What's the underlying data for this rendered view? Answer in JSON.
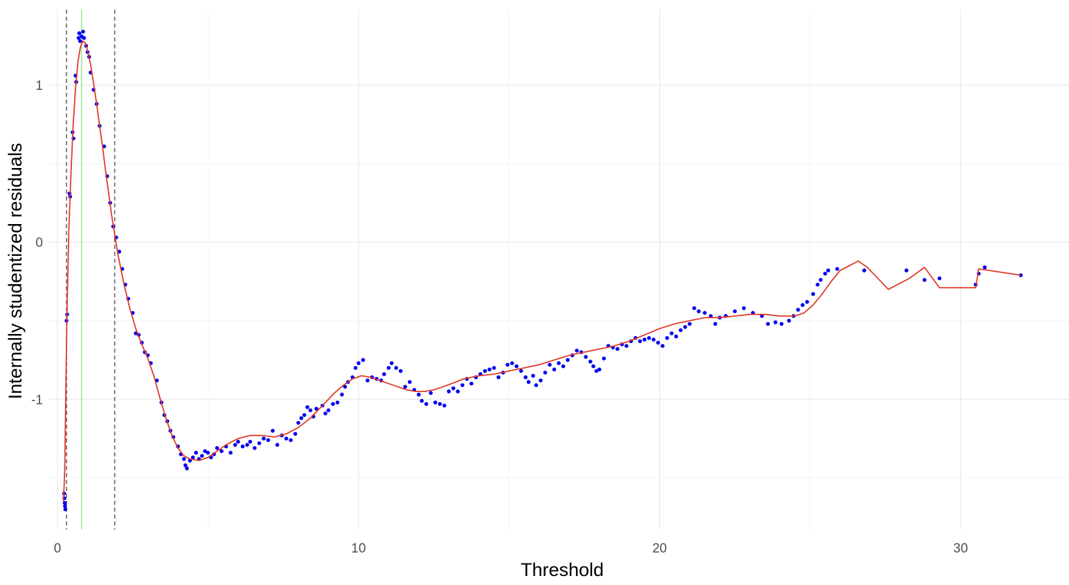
{
  "chart_data": {
    "type": "scatter",
    "title": "",
    "xlabel": "Threshold",
    "ylabel": "Internally studentized residuals",
    "xlim": [
      -0.3,
      33.6
    ],
    "ylim": [
      -1.83,
      1.48
    ],
    "xticks": [
      0,
      10,
      20,
      30
    ],
    "xtick_labels": [
      "0",
      "10",
      "20",
      "30"
    ],
    "yticks": [
      -1,
      0,
      1
    ],
    "ytick_labels": [
      "-1",
      "0",
      "1"
    ],
    "grid": true,
    "vlines": [
      {
        "x": 0.3,
        "style": "dashed",
        "color": "#666666"
      },
      {
        "x": 1.9,
        "style": "dashed",
        "color": "#666666"
      },
      {
        "x": 0.8,
        "style": "solid",
        "color": "#90ee90"
      }
    ],
    "series": [
      {
        "kind": "points",
        "color": "#0000ee",
        "points": [
          [
            0.22,
            -1.6
          ],
          [
            0.23,
            -1.63
          ],
          [
            0.24,
            -1.66
          ],
          [
            0.25,
            -1.68
          ],
          [
            0.26,
            -1.7
          ],
          [
            0.3,
            -0.5
          ],
          [
            0.32,
            -0.46
          ],
          [
            0.4,
            0.31
          ],
          [
            0.42,
            0.29
          ],
          [
            0.5,
            0.7
          ],
          [
            0.53,
            0.66
          ],
          [
            0.6,
            1.06
          ],
          [
            0.62,
            1.02
          ],
          [
            0.7,
            1.3
          ],
          [
            0.72,
            1.33
          ],
          [
            0.75,
            1.28
          ],
          [
            0.8,
            1.31
          ],
          [
            0.85,
            1.34
          ],
          [
            0.88,
            1.3
          ],
          [
            0.95,
            1.25
          ],
          [
            1.0,
            1.21
          ],
          [
            1.05,
            1.18
          ],
          [
            1.1,
            1.08
          ],
          [
            1.2,
            0.97
          ],
          [
            1.3,
            0.88
          ],
          [
            1.4,
            0.74
          ],
          [
            1.55,
            0.61
          ],
          [
            1.65,
            0.42
          ],
          [
            1.75,
            0.25
          ],
          [
            1.85,
            0.1
          ],
          [
            1.95,
            0.03
          ],
          [
            2.05,
            -0.06
          ],
          [
            2.15,
            -0.17
          ],
          [
            2.25,
            -0.27
          ],
          [
            2.35,
            -0.36
          ],
          [
            2.5,
            -0.45
          ],
          [
            2.6,
            -0.58
          ],
          [
            2.7,
            -0.59
          ],
          [
            2.8,
            -0.64
          ],
          [
            2.9,
            -0.7
          ],
          [
            3.0,
            -0.72
          ],
          [
            3.1,
            -0.77
          ],
          [
            3.3,
            -0.88
          ],
          [
            3.45,
            -1.02
          ],
          [
            3.55,
            -1.1
          ],
          [
            3.65,
            -1.14
          ],
          [
            3.75,
            -1.2
          ],
          [
            3.85,
            -1.24
          ],
          [
            4.0,
            -1.3
          ],
          [
            4.1,
            -1.35
          ],
          [
            4.2,
            -1.38
          ],
          [
            4.25,
            -1.42
          ],
          [
            4.3,
            -1.44
          ],
          [
            4.4,
            -1.39
          ],
          [
            4.5,
            -1.37
          ],
          [
            4.6,
            -1.34
          ],
          [
            4.7,
            -1.38
          ],
          [
            4.8,
            -1.36
          ],
          [
            4.9,
            -1.33
          ],
          [
            5.0,
            -1.34
          ],
          [
            5.1,
            -1.37
          ],
          [
            5.2,
            -1.35
          ],
          [
            5.3,
            -1.31
          ],
          [
            5.45,
            -1.33
          ],
          [
            5.6,
            -1.3
          ],
          [
            5.75,
            -1.34
          ],
          [
            5.9,
            -1.29
          ],
          [
            6.0,
            -1.27
          ],
          [
            6.15,
            -1.3
          ],
          [
            6.3,
            -1.29
          ],
          [
            6.4,
            -1.27
          ],
          [
            6.55,
            -1.31
          ],
          [
            6.7,
            -1.28
          ],
          [
            6.85,
            -1.25
          ],
          [
            7.0,
            -1.26
          ],
          [
            7.15,
            -1.2
          ],
          [
            7.3,
            -1.29
          ],
          [
            7.45,
            -1.23
          ],
          [
            7.6,
            -1.25
          ],
          [
            7.75,
            -1.26
          ],
          [
            7.9,
            -1.22
          ],
          [
            8.0,
            -1.15
          ],
          [
            8.1,
            -1.12
          ],
          [
            8.2,
            -1.1
          ],
          [
            8.3,
            -1.05
          ],
          [
            8.4,
            -1.07
          ],
          [
            8.5,
            -1.11
          ],
          [
            8.6,
            -1.06
          ],
          [
            8.8,
            -1.04
          ],
          [
            8.9,
            -1.09
          ],
          [
            9.0,
            -1.07
          ],
          [
            9.15,
            -1.03
          ],
          [
            9.3,
            -1.02
          ],
          [
            9.45,
            -0.97
          ],
          [
            9.55,
            -0.92
          ],
          [
            9.65,
            -0.89
          ],
          [
            9.8,
            -0.86
          ],
          [
            9.9,
            -0.8
          ],
          [
            10.0,
            -0.77
          ],
          [
            10.15,
            -0.75
          ],
          [
            10.3,
            -0.88
          ],
          [
            10.45,
            -0.86
          ],
          [
            10.6,
            -0.87
          ],
          [
            10.75,
            -0.88
          ],
          [
            10.85,
            -0.84
          ],
          [
            11.0,
            -0.8
          ],
          [
            11.1,
            -0.77
          ],
          [
            11.25,
            -0.8
          ],
          [
            11.4,
            -0.82
          ],
          [
            11.55,
            -0.92
          ],
          [
            11.7,
            -0.89
          ],
          [
            11.85,
            -0.94
          ],
          [
            12.0,
            -0.97
          ],
          [
            12.1,
            -1.01
          ],
          [
            12.25,
            -1.03
          ],
          [
            12.4,
            -0.96
          ],
          [
            12.55,
            -1.02
          ],
          [
            12.7,
            -1.03
          ],
          [
            12.85,
            -1.04
          ],
          [
            13.0,
            -0.95
          ],
          [
            13.15,
            -0.93
          ],
          [
            13.3,
            -0.95
          ],
          [
            13.45,
            -0.91
          ],
          [
            13.6,
            -0.87
          ],
          [
            13.75,
            -0.9
          ],
          [
            13.9,
            -0.86
          ],
          [
            14.05,
            -0.84
          ],
          [
            14.2,
            -0.82
          ],
          [
            14.35,
            -0.81
          ],
          [
            14.5,
            -0.8
          ],
          [
            14.65,
            -0.86
          ],
          [
            14.8,
            -0.83
          ],
          [
            14.95,
            -0.78
          ],
          [
            15.1,
            -0.77
          ],
          [
            15.25,
            -0.79
          ],
          [
            15.4,
            -0.82
          ],
          [
            15.55,
            -0.86
          ],
          [
            15.65,
            -0.89
          ],
          [
            15.8,
            -0.85
          ],
          [
            15.9,
            -0.91
          ],
          [
            16.05,
            -0.88
          ],
          [
            16.2,
            -0.83
          ],
          [
            16.35,
            -0.78
          ],
          [
            16.5,
            -0.81
          ],
          [
            16.65,
            -0.77
          ],
          [
            16.8,
            -0.79
          ],
          [
            16.95,
            -0.75
          ],
          [
            17.1,
            -0.72
          ],
          [
            17.25,
            -0.69
          ],
          [
            17.4,
            -0.7
          ],
          [
            17.55,
            -0.73
          ],
          [
            17.7,
            -0.76
          ],
          [
            17.8,
            -0.79
          ],
          [
            17.9,
            -0.82
          ],
          [
            18.0,
            -0.81
          ],
          [
            18.15,
            -0.74
          ],
          [
            18.3,
            -0.66
          ],
          [
            18.45,
            -0.67
          ],
          [
            18.6,
            -0.68
          ],
          [
            18.75,
            -0.65
          ],
          [
            18.9,
            -0.66
          ],
          [
            19.05,
            -0.63
          ],
          [
            19.2,
            -0.61
          ],
          [
            19.35,
            -0.63
          ],
          [
            19.5,
            -0.62
          ],
          [
            19.65,
            -0.61
          ],
          [
            19.8,
            -0.62
          ],
          [
            19.95,
            -0.64
          ],
          [
            20.1,
            -0.66
          ],
          [
            20.25,
            -0.61
          ],
          [
            20.4,
            -0.58
          ],
          [
            20.55,
            -0.6
          ],
          [
            20.7,
            -0.56
          ],
          [
            20.85,
            -0.54
          ],
          [
            21.0,
            -0.52
          ],
          [
            21.15,
            -0.42
          ],
          [
            21.3,
            -0.44
          ],
          [
            21.5,
            -0.45
          ],
          [
            21.7,
            -0.47
          ],
          [
            21.85,
            -0.52
          ],
          [
            22.0,
            -0.48
          ],
          [
            22.2,
            -0.47
          ],
          [
            22.5,
            -0.44
          ],
          [
            22.8,
            -0.42
          ],
          [
            23.1,
            -0.45
          ],
          [
            23.4,
            -0.47
          ],
          [
            23.6,
            -0.52
          ],
          [
            23.85,
            -0.51
          ],
          [
            24.05,
            -0.52
          ],
          [
            24.3,
            -0.5
          ],
          [
            24.45,
            -0.47
          ],
          [
            24.6,
            -0.43
          ],
          [
            24.75,
            -0.4
          ],
          [
            24.9,
            -0.38
          ],
          [
            25.1,
            -0.33
          ],
          [
            25.25,
            -0.27
          ],
          [
            25.35,
            -0.24
          ],
          [
            25.5,
            -0.2
          ],
          [
            25.6,
            -0.18
          ],
          [
            25.9,
            -0.17
          ],
          [
            26.8,
            -0.18
          ],
          [
            28.2,
            -0.18
          ],
          [
            28.8,
            -0.24
          ],
          [
            29.3,
            -0.23
          ],
          [
            30.5,
            -0.27
          ],
          [
            30.6,
            -0.2
          ],
          [
            30.8,
            -0.16
          ],
          [
            32.0,
            -0.21
          ]
        ]
      },
      {
        "kind": "line",
        "color": "#e03a2a",
        "points": [
          [
            0.2,
            -1.65
          ],
          [
            0.24,
            -1.45
          ],
          [
            0.28,
            -0.9
          ],
          [
            0.32,
            -0.4
          ],
          [
            0.38,
            0.1
          ],
          [
            0.45,
            0.45
          ],
          [
            0.52,
            0.75
          ],
          [
            0.6,
            0.98
          ],
          [
            0.68,
            1.15
          ],
          [
            0.76,
            1.24
          ],
          [
            0.84,
            1.28
          ],
          [
            0.92,
            1.27
          ],
          [
            1.0,
            1.22
          ],
          [
            1.1,
            1.13
          ],
          [
            1.2,
            1.01
          ],
          [
            1.3,
            0.88
          ],
          [
            1.4,
            0.74
          ],
          [
            1.5,
            0.6
          ],
          [
            1.6,
            0.45
          ],
          [
            1.7,
            0.31
          ],
          [
            1.8,
            0.17
          ],
          [
            1.9,
            0.05
          ],
          [
            2.0,
            -0.07
          ],
          [
            2.2,
            -0.26
          ],
          [
            2.4,
            -0.42
          ],
          [
            2.6,
            -0.55
          ],
          [
            2.8,
            -0.65
          ],
          [
            3.0,
            -0.74
          ],
          [
            3.2,
            -0.85
          ],
          [
            3.4,
            -0.99
          ],
          [
            3.6,
            -1.12
          ],
          [
            3.8,
            -1.23
          ],
          [
            4.0,
            -1.31
          ],
          [
            4.2,
            -1.36
          ],
          [
            4.4,
            -1.38
          ],
          [
            4.7,
            -1.39
          ],
          [
            5.0,
            -1.37
          ],
          [
            5.3,
            -1.33
          ],
          [
            5.6,
            -1.29
          ],
          [
            6.0,
            -1.25
          ],
          [
            6.4,
            -1.23
          ],
          [
            6.8,
            -1.23
          ],
          [
            7.2,
            -1.24
          ],
          [
            7.6,
            -1.22
          ],
          [
            8.0,
            -1.18
          ],
          [
            8.4,
            -1.12
          ],
          [
            8.8,
            -1.04
          ],
          [
            9.2,
            -0.96
          ],
          [
            9.5,
            -0.91
          ],
          [
            9.8,
            -0.87
          ],
          [
            10.1,
            -0.85
          ],
          [
            10.4,
            -0.86
          ],
          [
            10.7,
            -0.88
          ],
          [
            11.0,
            -0.9
          ],
          [
            11.3,
            -0.92
          ],
          [
            11.6,
            -0.94
          ],
          [
            11.9,
            -0.95
          ],
          [
            12.2,
            -0.95
          ],
          [
            12.5,
            -0.94
          ],
          [
            12.8,
            -0.92
          ],
          [
            13.1,
            -0.9
          ],
          [
            13.5,
            -0.87
          ],
          [
            14.0,
            -0.85
          ],
          [
            14.5,
            -0.84
          ],
          [
            15.0,
            -0.82
          ],
          [
            15.5,
            -0.8
          ],
          [
            16.0,
            -0.78
          ],
          [
            16.5,
            -0.75
          ],
          [
            17.0,
            -0.72
          ],
          [
            17.5,
            -0.7
          ],
          [
            18.0,
            -0.68
          ],
          [
            18.5,
            -0.66
          ],
          [
            19.0,
            -0.63
          ],
          [
            19.5,
            -0.59
          ],
          [
            20.0,
            -0.55
          ],
          [
            20.5,
            -0.52
          ],
          [
            21.0,
            -0.5
          ],
          [
            21.5,
            -0.48
          ],
          [
            22.0,
            -0.48
          ],
          [
            22.5,
            -0.47
          ],
          [
            23.0,
            -0.46
          ],
          [
            23.5,
            -0.46
          ],
          [
            24.0,
            -0.47
          ],
          [
            24.5,
            -0.47
          ],
          [
            24.8,
            -0.45
          ],
          [
            25.1,
            -0.4
          ],
          [
            25.4,
            -0.33
          ],
          [
            25.7,
            -0.25
          ],
          [
            26.0,
            -0.18
          ],
          [
            26.3,
            -0.15
          ],
          [
            26.6,
            -0.12
          ],
          [
            26.9,
            -0.16
          ],
          [
            27.6,
            -0.3
          ],
          [
            28.3,
            -0.23
          ],
          [
            28.8,
            -0.16
          ],
          [
            29.3,
            -0.29
          ],
          [
            30.0,
            -0.29
          ],
          [
            30.5,
            -0.29
          ],
          [
            30.6,
            -0.17
          ],
          [
            32.0,
            -0.21
          ]
        ]
      }
    ]
  }
}
